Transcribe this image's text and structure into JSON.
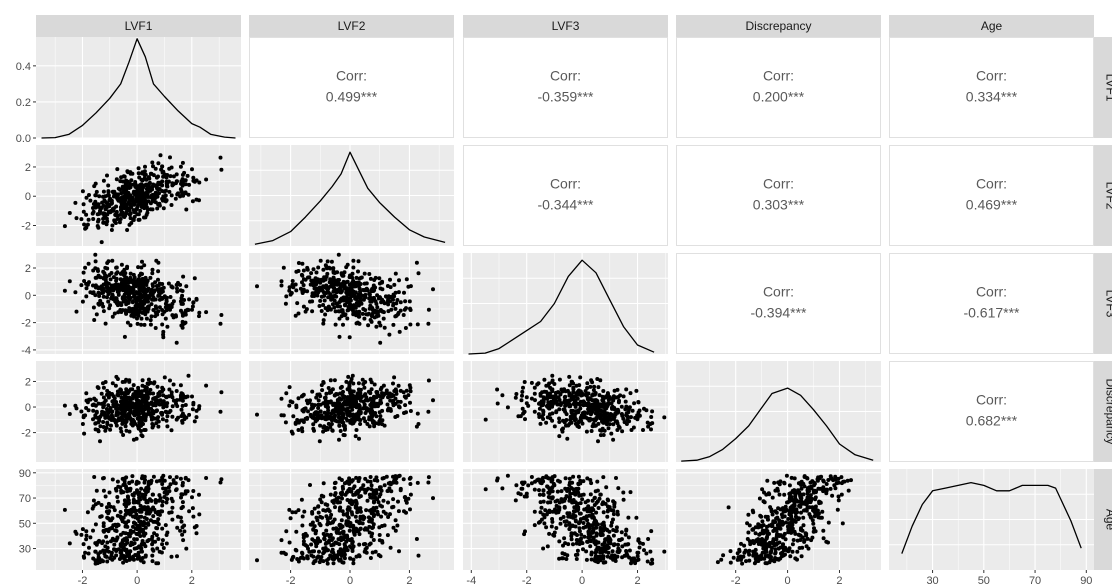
{
  "variables": [
    "LVF1",
    "LVF2",
    "LVF3",
    "Discrepancy",
    "Age"
  ],
  "correlation_label": "Corr:",
  "correlations": [
    {
      "row": "LVF2",
      "col": "LVF1",
      "value": "0.499***"
    },
    {
      "row": "LVF3",
      "col": "LVF1",
      "value": "-0.359***"
    },
    {
      "row": "Discrepancy",
      "col": "LVF1",
      "value": "0.200***"
    },
    {
      "row": "Age",
      "col": "LVF1",
      "value": "0.334***"
    },
    {
      "row": "LVF3",
      "col": "LVF2",
      "value": "-0.344***"
    },
    {
      "row": "Discrepancy",
      "col": "LVF2",
      "value": "0.303***"
    },
    {
      "row": "Age",
      "col": "LVF2",
      "value": "0.469***"
    },
    {
      "row": "Discrepancy",
      "col": "LVF3",
      "value": "-0.394***"
    },
    {
      "row": "Age",
      "col": "LVF3",
      "value": "-0.617***"
    },
    {
      "row": "Age",
      "col": "Discrepancy",
      "value": "0.682***"
    }
  ],
  "chart_data": {
    "type": "scatter",
    "subtype": "scatterplot-matrix",
    "title": "",
    "axes": {
      "LVF1": {
        "range": [
          -3.7,
          3.8
        ],
        "ticks": [
          -2,
          0,
          2
        ],
        "tick_labels": [
          "-2",
          "0",
          "2"
        ]
      },
      "LVF2": {
        "range": [
          -3.4,
          3.5
        ],
        "ticks": [
          -2,
          0,
          2
        ],
        "tick_labels": [
          "-2",
          "0",
          "2"
        ]
      },
      "LVF3": {
        "range": [
          -4.3,
          3.1
        ],
        "ticks": [
          -4,
          -2,
          0,
          2
        ],
        "tick_labels": [
          "-4",
          "-2",
          "0",
          "2"
        ]
      },
      "Discrepancy": {
        "range": [
          -4.3,
          3.6
        ],
        "ticks": [
          -2,
          0,
          2
        ],
        "tick_labels": [
          "-2",
          "0",
          "2"
        ]
      },
      "Age": {
        "range": [
          13,
          93
        ],
        "ticks": [
          30,
          50,
          70,
          90
        ],
        "tick_labels": [
          "30",
          "50",
          "70",
          "90"
        ]
      }
    },
    "density_y_axis": {
      "range": [
        0,
        0.56
      ],
      "ticks": [
        0,
        0.2,
        0.4
      ],
      "tick_labels": [
        "0.0",
        "0.2",
        "0.4"
      ]
    },
    "density_curves": {
      "LVF1": {
        "x": [
          -3.5,
          -3.0,
          -2.5,
          -2.0,
          -1.5,
          -1.0,
          -0.6,
          -0.3,
          0.0,
          0.3,
          0.6,
          1.0,
          1.5,
          2.0,
          2.3,
          2.7,
          3.2,
          3.6
        ],
        "y": [
          0.0,
          0.002,
          0.02,
          0.07,
          0.14,
          0.22,
          0.3,
          0.42,
          0.55,
          0.45,
          0.3,
          0.23,
          0.15,
          0.08,
          0.06,
          0.02,
          0.005,
          0.0
        ]
      },
      "LVF2": {
        "x": [
          -3.2,
          -2.6,
          -2.0,
          -1.5,
          -1.0,
          -0.6,
          -0.3,
          0.0,
          0.3,
          0.6,
          1.0,
          1.5,
          2.0,
          2.5,
          3.2
        ],
        "y": [
          0.01,
          0.03,
          0.08,
          0.16,
          0.25,
          0.33,
          0.4,
          0.52,
          0.42,
          0.32,
          0.24,
          0.16,
          0.09,
          0.05,
          0.02
        ]
      },
      "LVF3": {
        "x": [
          -4.1,
          -3.5,
          -3.0,
          -2.5,
          -2.0,
          -1.5,
          -1.0,
          -0.5,
          0.0,
          0.5,
          1.0,
          1.5,
          2.0,
          2.6
        ],
        "y": [
          0.0,
          0.005,
          0.03,
          0.08,
          0.13,
          0.18,
          0.28,
          0.43,
          0.52,
          0.45,
          0.3,
          0.15,
          0.05,
          0.01
        ]
      },
      "Discrepancy": {
        "x": [
          -4.1,
          -3.5,
          -3.0,
          -2.5,
          -2.0,
          -1.5,
          -1.0,
          -0.6,
          0.0,
          0.5,
          1.0,
          1.5,
          2.0,
          2.6,
          3.3
        ],
        "y": [
          0.005,
          0.01,
          0.03,
          0.07,
          0.13,
          0.2,
          0.3,
          0.38,
          0.41,
          0.37,
          0.29,
          0.2,
          0.1,
          0.04,
          0.01
        ]
      },
      "Age": {
        "x": [
          18,
          22,
          26,
          30,
          35,
          40,
          45,
          50,
          55,
          60,
          65,
          70,
          75,
          78,
          80,
          84,
          88
        ],
        "y": [
          0.003,
          0.008,
          0.012,
          0.0145,
          0.015,
          0.0155,
          0.016,
          0.0155,
          0.0145,
          0.0145,
          0.0155,
          0.0155,
          0.0155,
          0.015,
          0.013,
          0.009,
          0.004
        ]
      }
    },
    "scatter": {
      "n_points": 500,
      "seed": 7,
      "correlations": {
        "LVF1-LVF2": 0.499,
        "LVF1-LVF3": -0.359,
        "LVF1-Discrepancy": 0.2,
        "LVF1-Age": 0.334,
        "LVF2-LVF3": -0.344,
        "LVF2-Discrepancy": 0.303,
        "LVF2-Age": 0.469,
        "LVF3-Discrepancy": -0.394,
        "LVF3-Age": -0.617,
        "Discrepancy-Age": 0.682
      }
    },
    "colors": {
      "panel_bg": "#ebebeb",
      "grid": "#ffffff",
      "strip_bg": "#d9d9d9",
      "points": "#000000",
      "line": "#000000",
      "corr_text": "#595959"
    }
  }
}
